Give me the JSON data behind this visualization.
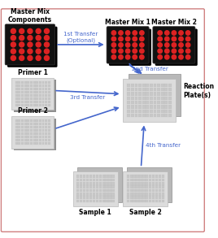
{
  "bg_color": "#ffffff",
  "border_color": "#d08080",
  "arrow_color": "#4466cc",
  "text_color": "#000000",
  "black_plate_bg": "#111111",
  "black_plate_shadow": "#000000",
  "red_dot_color": "#dd2222",
  "gray_light": "#dcdcdc",
  "gray_mid": "#b8b8b8",
  "gray_dark": "#909090",
  "well_color": "#c8c8c8",
  "labels": {
    "master_mix_components": "Master Mix\nComponents",
    "master_mix_1": "Master Mix 1",
    "master_mix_2": "Master Mix 2",
    "primer_1": "Primer 1",
    "primer_2": "Primer 2",
    "reaction_plates": "Reaction\nPlate(s)",
    "sample_1": "Sample 1",
    "sample_2": "Sample 2",
    "transfer_1": "1st Transfer\n(Optional)",
    "transfer_2": "2nd Transfer",
    "transfer_3": "3rd Transfer",
    "transfer_4": "4th Transfer"
  },
  "font_size_label": 5.5,
  "font_size_transfer": 5.2
}
